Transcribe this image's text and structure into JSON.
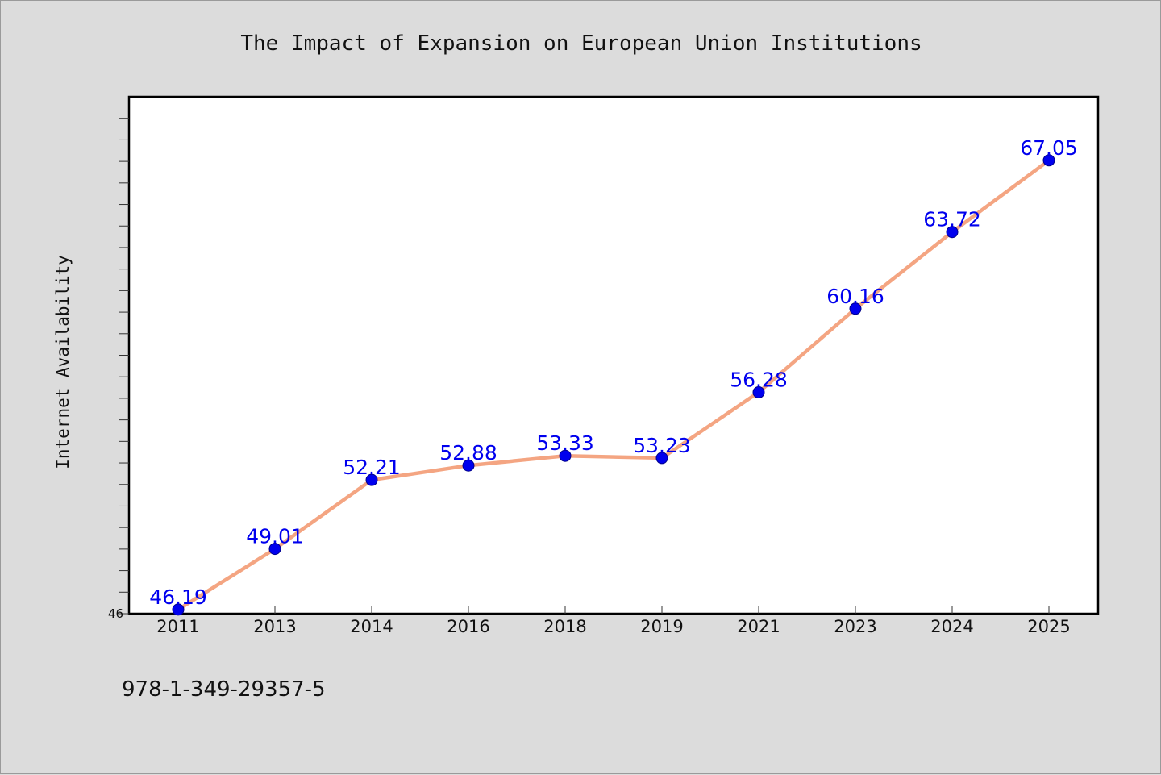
{
  "chart_data": {
    "type": "line",
    "title": "The Impact of Expansion on European Union Institutions",
    "xlabel": "",
    "ylabel": "Internet Availability",
    "categories": [
      "2011",
      "2013",
      "2014",
      "2016",
      "2018",
      "2019",
      "2021",
      "2023",
      "2024",
      "2025"
    ],
    "series": [
      {
        "values": [
          46.19,
          49.01,
          52.21,
          52.88,
          53.33,
          53.23,
          56.28,
          60.16,
          63.72,
          67.05
        ],
        "data_labels": [
          "46.19",
          "49.01",
          "52.21",
          "52.88",
          "53.33",
          "53.23",
          "56.28",
          "60.16",
          "63.72",
          "67.05"
        ]
      }
    ],
    "ylim": [
      46,
      70
    ],
    "y_ticks_labeled": [
      "46"
    ],
    "grid": false,
    "legend": "none",
    "colors": {
      "line": "#f4a582",
      "marker": "#0000ee",
      "label": "#0000ee",
      "plot_background": "#ffffff",
      "figure_background": "#dcdcdc"
    }
  },
  "footer": {
    "isbn": "978-1-349-29357-5"
  }
}
